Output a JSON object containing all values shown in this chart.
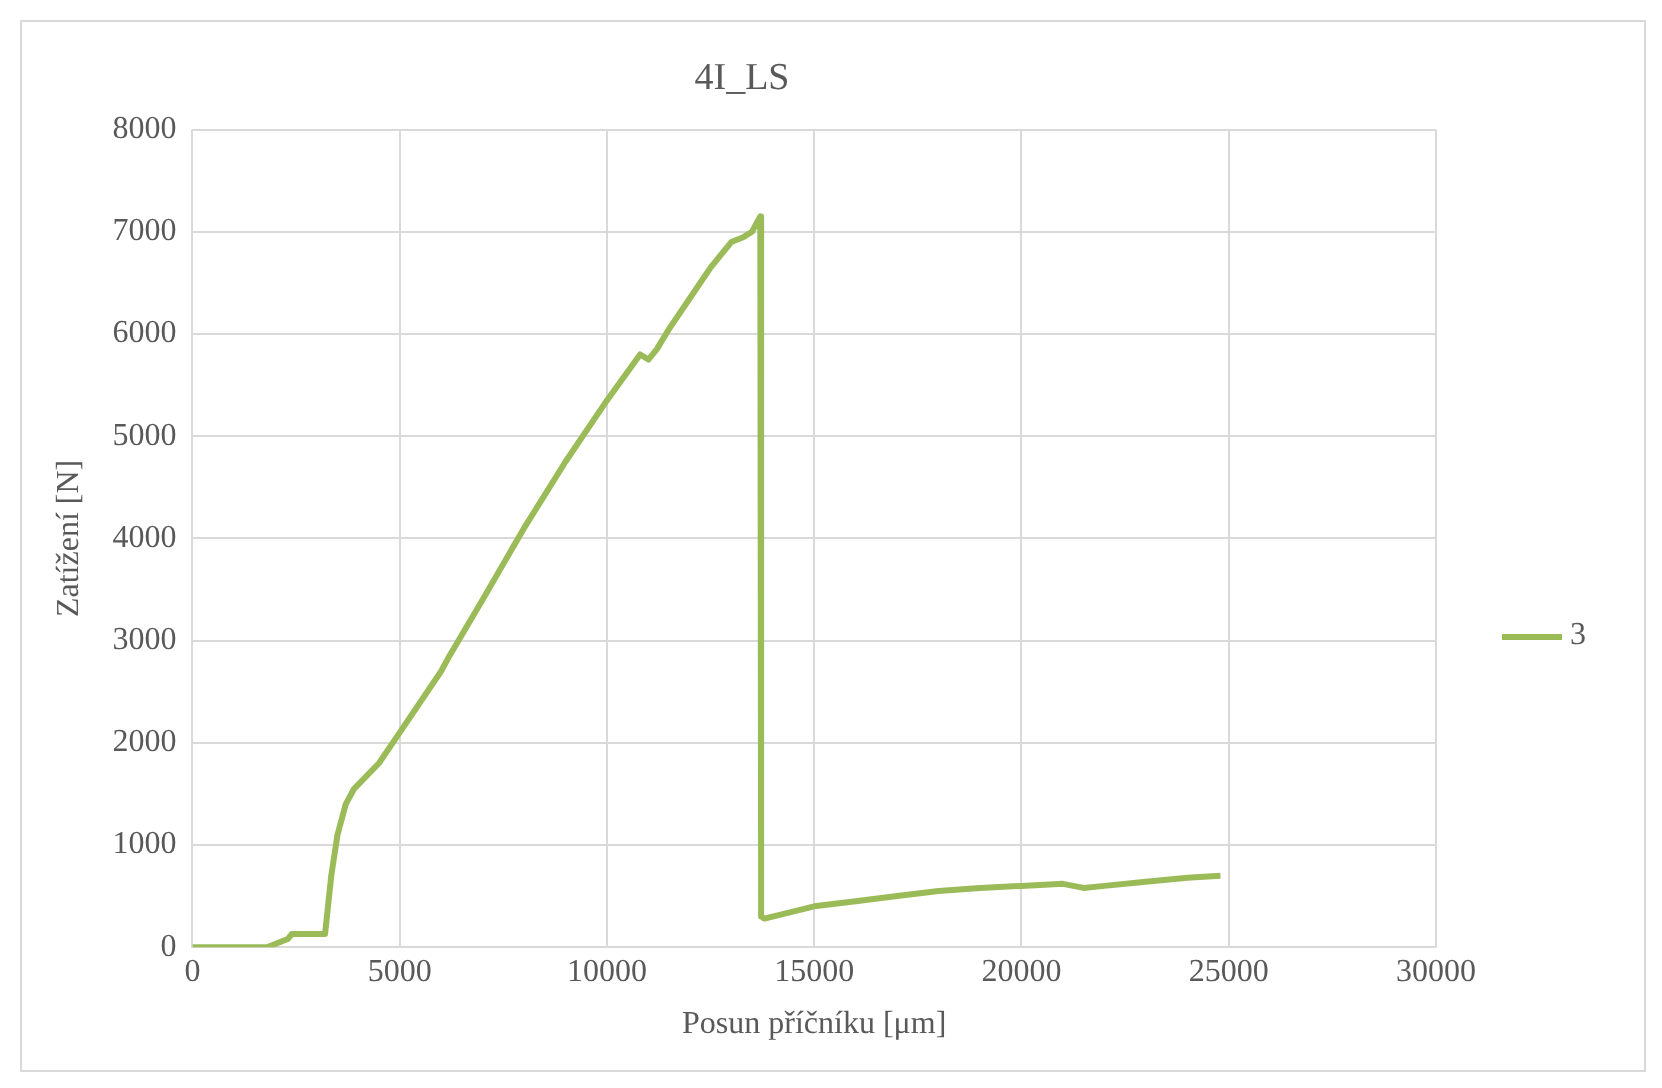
{
  "chart_data": {
    "type": "line",
    "title": "4I_LS",
    "xlabel": "Posun příčníku [μm]",
    "ylabel": "Zatížení [N]",
    "xlim": [
      0,
      30000
    ],
    "xticks": [
      0,
      5000,
      10000,
      15000,
      20000,
      25000,
      30000
    ],
    "ylim": [
      0,
      8000
    ],
    "yticks": [
      0,
      1000,
      2000,
      3000,
      4000,
      5000,
      6000,
      7000,
      8000
    ],
    "grid": true,
    "legend": "right",
    "marker": "none",
    "series": [
      {
        "name": "3",
        "color": "#9bbb59",
        "x": [
          0,
          1800,
          2300,
          2400,
          3200,
          3350,
          3500,
          3700,
          3900,
          4500,
          5000,
          6000,
          6200,
          7000,
          8000,
          9000,
          10000,
          10800,
          11000,
          11200,
          11500,
          12000,
          12500,
          13000,
          13300,
          13500,
          13700,
          13720,
          13800,
          15000,
          16000,
          17000,
          18000,
          19000,
          20000,
          21000,
          21500,
          22000,
          23000,
          24000,
          24800
        ],
        "values": [
          0,
          0,
          80,
          130,
          130,
          700,
          1100,
          1400,
          1550,
          1800,
          2100,
          2700,
          2850,
          3400,
          4100,
          4750,
          5350,
          5800,
          5750,
          5850,
          6050,
          6350,
          6650,
          6900,
          6950,
          7000,
          7150,
          300,
          280,
          400,
          450,
          500,
          550,
          580,
          600,
          620,
          580,
          600,
          640,
          680,
          700
        ]
      }
    ]
  }
}
